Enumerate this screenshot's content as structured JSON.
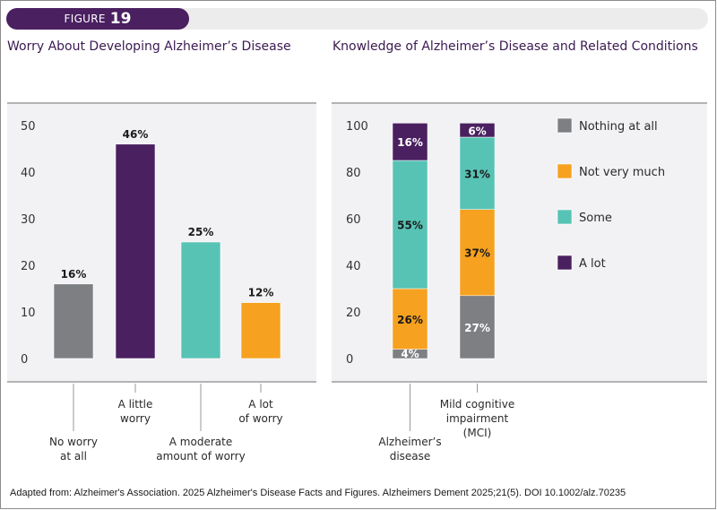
{
  "figure": {
    "label_word": "FIGURE",
    "label_number": "19"
  },
  "colors": {
    "purple": "#4a2060",
    "gray": "#7e7f82",
    "teal": "#57c3b5",
    "orange": "#f6a11f",
    "panel_bg": "#f2f2f4",
    "title": "#3b1a52"
  },
  "source": "Adapted from: Alzheimer's Association. 2025 Alzheimer's Disease Facts and Figures. Alzheimers Dement 2025;21(5). DOI 10.1002/alz.70235",
  "chart_data": [
    {
      "type": "bar",
      "title": "Worry About Developing Alzheimer’s Disease",
      "xlabel": "",
      "ylabel": "",
      "ylim": [
        0,
        50
      ],
      "yticks": [
        0,
        10,
        20,
        30,
        40,
        50
      ],
      "grid": false,
      "categories": [
        [
          "No worry",
          "at all"
        ],
        [
          "A little",
          "worry"
        ],
        [
          "A moderate",
          "amount of worry"
        ],
        [
          "A lot",
          "of worry"
        ]
      ],
      "values": [
        16,
        46,
        25,
        12
      ],
      "data_labels": [
        "16%",
        "46%",
        "25%",
        "12%"
      ],
      "bar_colors": [
        "#7e7f82",
        "#4a2060",
        "#57c3b5",
        "#f6a11f"
      ]
    },
    {
      "type": "bar",
      "stacked": true,
      "title": "Knowledge of Alzheimer’s Disease and Related Conditions",
      "xlabel": "",
      "ylabel": "",
      "ylim": [
        0,
        100
      ],
      "yticks": [
        0,
        20,
        40,
        60,
        80,
        100
      ],
      "grid": false,
      "legend_position": "right",
      "categories": [
        [
          "Alzheimer’s",
          "disease"
        ],
        [
          "Mild cognitive",
          "impairment",
          "(MCI)"
        ]
      ],
      "series": [
        {
          "name": "Nothing at all",
          "color": "#7e7f82",
          "values": [
            4,
            27
          ],
          "labels": [
            "4%",
            "27%"
          ],
          "label_color": "#ffffff"
        },
        {
          "name": "Not very much",
          "color": "#f6a11f",
          "values": [
            26,
            37
          ],
          "labels": [
            "26%",
            "37%"
          ],
          "label_color": "#1a1a1a"
        },
        {
          "name": "Some",
          "color": "#57c3b5",
          "values": [
            55,
            31
          ],
          "labels": [
            "55%",
            "31%"
          ],
          "label_color": "#1a1a1a"
        },
        {
          "name": "A lot",
          "color": "#4a2060",
          "values": [
            16,
            6
          ],
          "labels": [
            "16%",
            "6%"
          ],
          "label_color": "#ffffff"
        }
      ]
    }
  ]
}
